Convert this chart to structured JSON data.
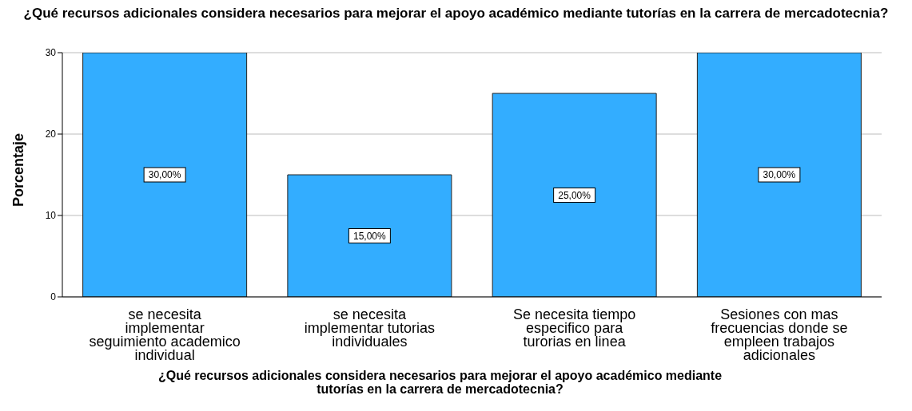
{
  "chart_data": {
    "type": "bar",
    "title": "¿Qué recursos adicionales considera necesarios para mejorar el apoyo académico mediante tutorías en la carrera de mercadotecnia?",
    "xlabel": "¿Qué recursos adicionales considera necesarios para mejorar el apoyo académico mediante tutorías en la carrera de mercadotecnia?",
    "ylabel": "Porcentaje",
    "categories": [
      "se necesita implementar seguimiento academico individual",
      "se necesita implementar tutorias individuales",
      "Se necesita tiempo especifico para turorias en linea",
      "Sesiones con mas frecuencias donde se empleen trabajos adicionales"
    ],
    "values": [
      30,
      15,
      25,
      30
    ],
    "color": "#33adff",
    "value_labels": [
      "30,00%",
      "15,00%",
      "25,00%",
      "30,00%"
    ],
    "ylim": [
      0,
      30
    ],
    "yticks": [
      0,
      10,
      20,
      30
    ],
    "grid": "y"
  }
}
